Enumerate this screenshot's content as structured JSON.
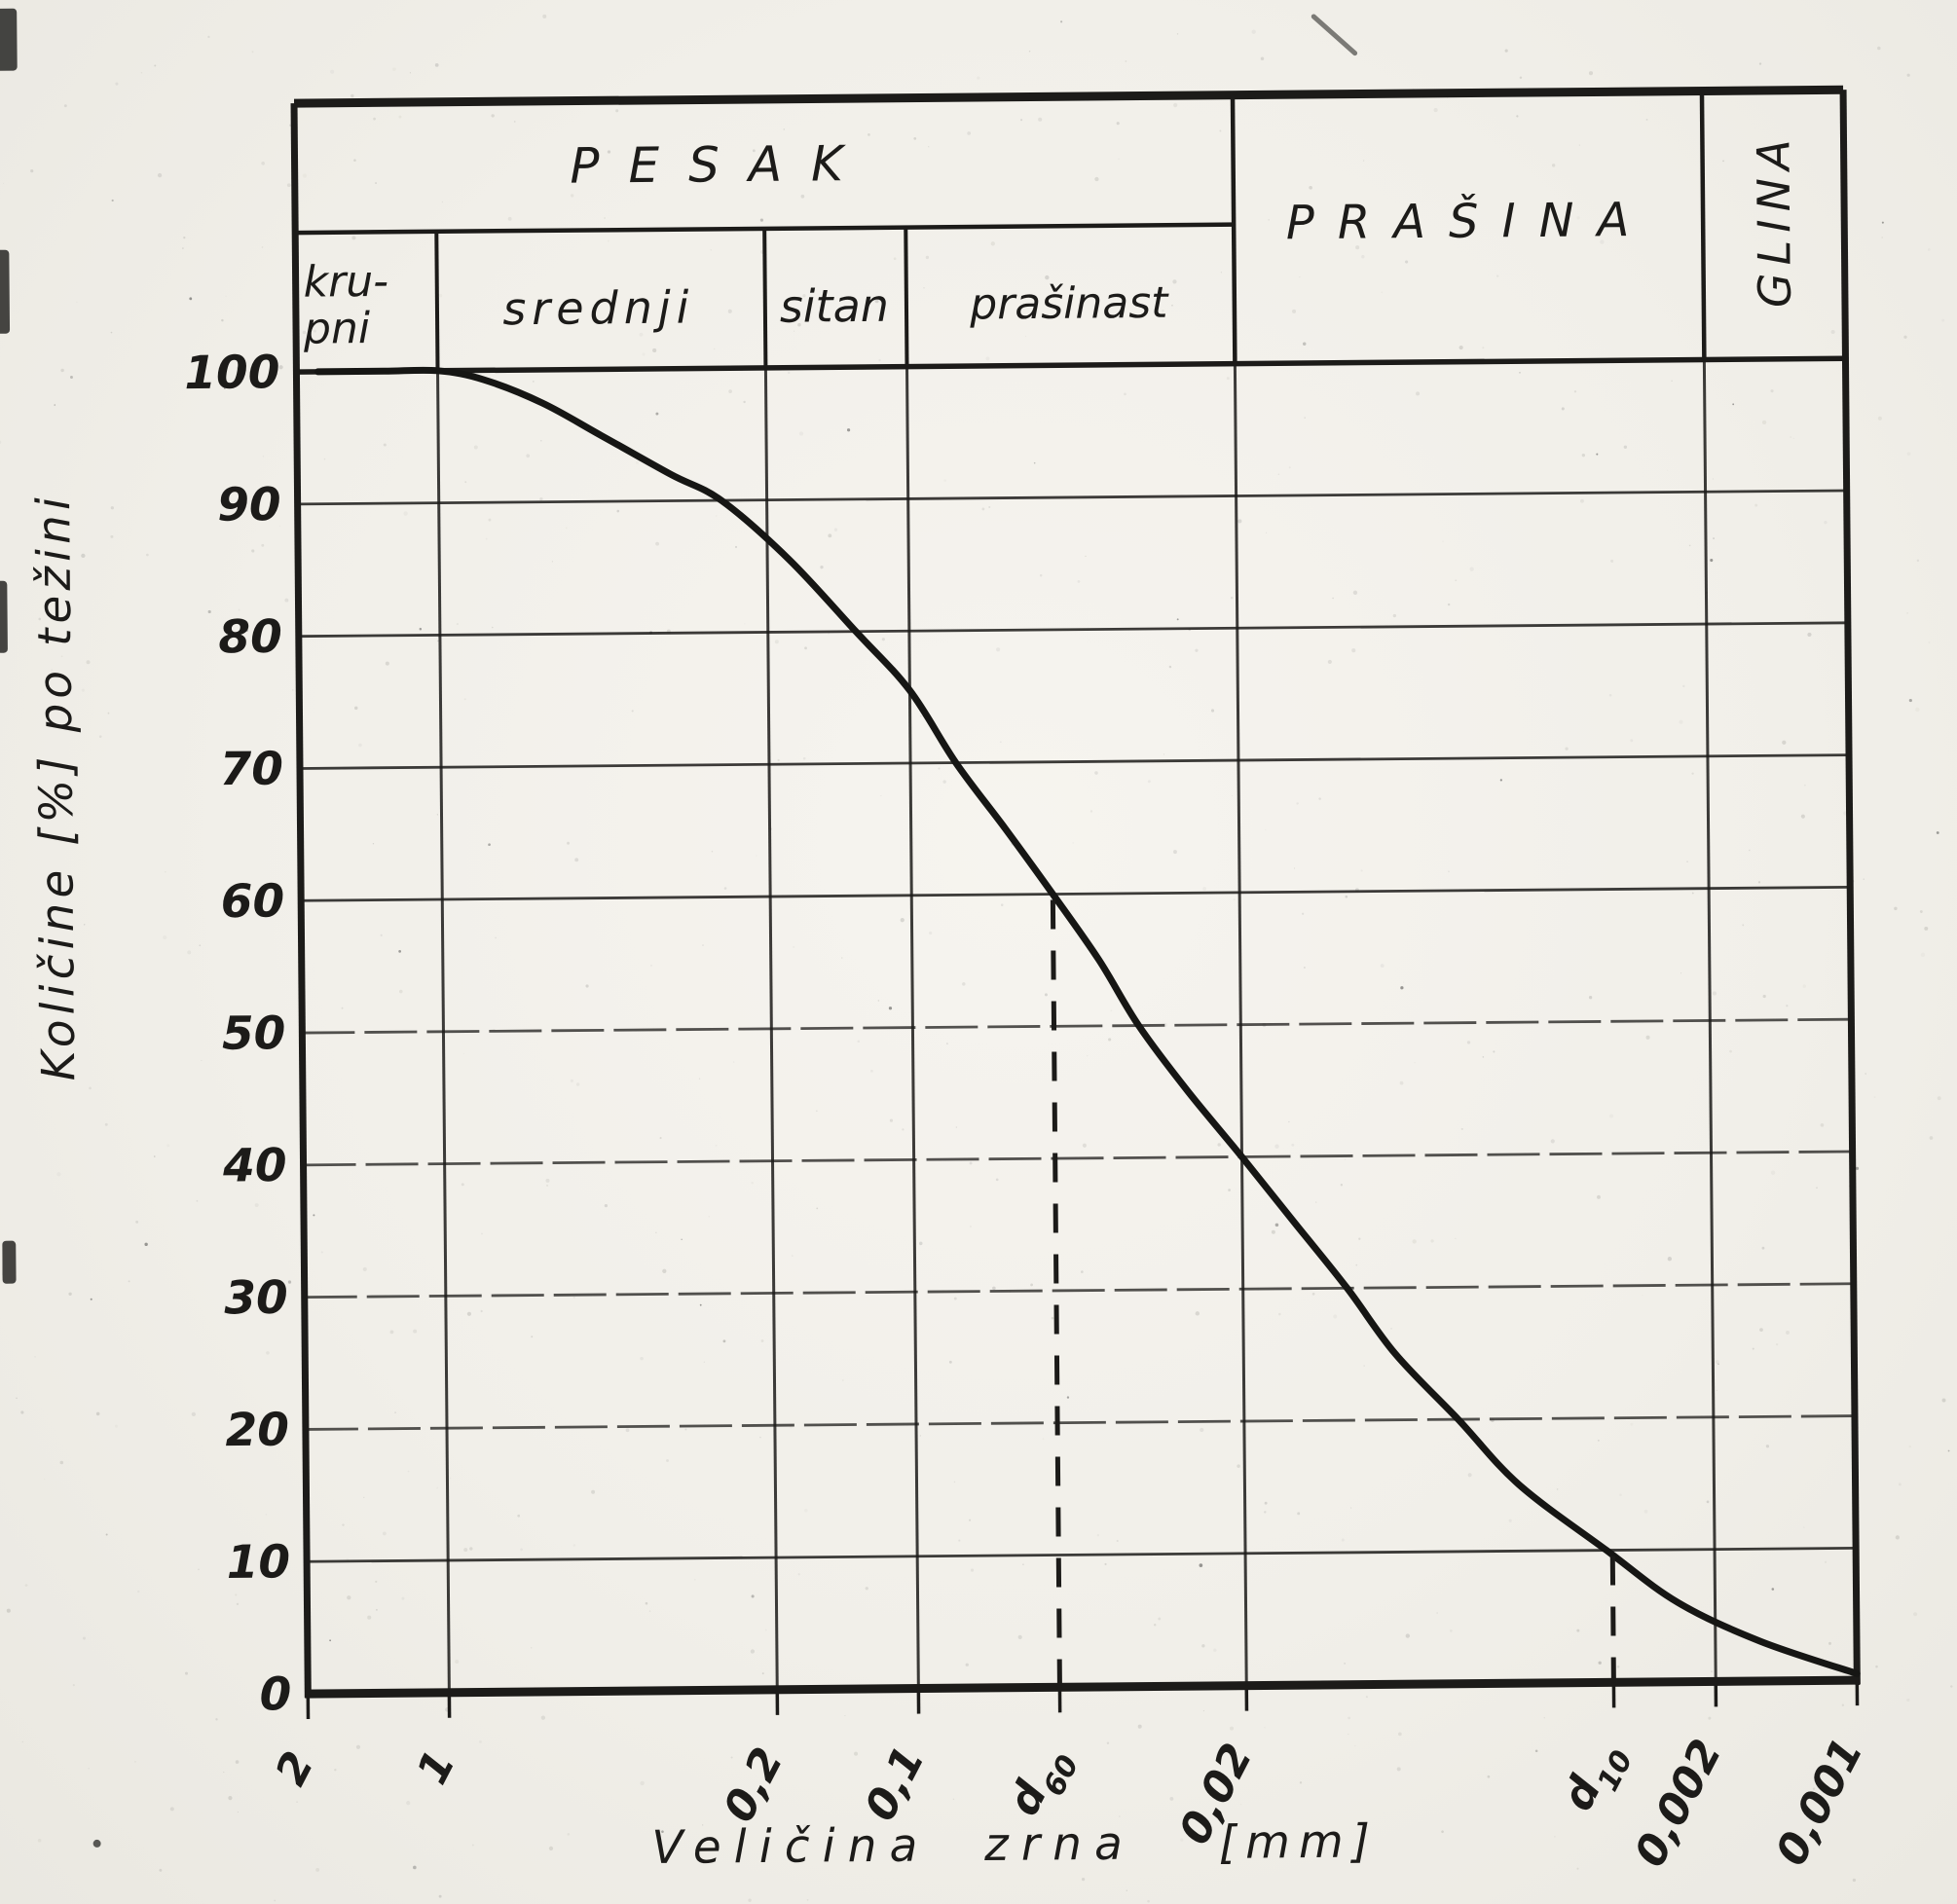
{
  "paper": {
    "bg": "#f3f1ec",
    "ink": "#1c1b19"
  },
  "header": {
    "pesak_label": "PESAK",
    "prasina_label": "PRAŠINA",
    "glina_label": "GLINA",
    "krupni_label": "kru-\npni",
    "srednji_label": "srednji",
    "sitan_label": "sitan",
    "prasinast_label": "prašinast",
    "pesak_range_mm": [
      2,
      0.02
    ],
    "prasina_range_mm": [
      0.02,
      0.002
    ],
    "glina_range_mm": [
      0.002,
      0.001
    ],
    "sand_subtypes": [
      {
        "label": "kru-pni",
        "from_mm": 2,
        "to_mm": 1
      },
      {
        "label": "srednji",
        "from_mm": 1,
        "to_mm": 0.2
      },
      {
        "label": "sitan",
        "from_mm": 0.2,
        "to_mm": 0.1
      },
      {
        "label": "prašinast",
        "from_mm": 0.1,
        "to_mm": 0.02
      }
    ]
  },
  "chart_data": {
    "type": "line",
    "title": "",
    "xlabel": "Veličina zrna",
    "x_unit": "[mm]",
    "ylabel": "Količine [%] po težini",
    "x_scale": "log_descending",
    "x_domain_mm": [
      2,
      0.001
    ],
    "ylim": [
      0,
      100
    ],
    "grid": true,
    "y_ticks": [
      100,
      90,
      80,
      70,
      60,
      50,
      40,
      30,
      20,
      10,
      0
    ],
    "x_gridlines_mm": [
      1,
      0.2,
      0.1,
      0.02,
      0.002
    ],
    "x_tick_labels": [
      {
        "text": "2",
        "mm": 2
      },
      {
        "text": "1",
        "mm": 1
      },
      {
        "text": "0,2",
        "mm": 0.2
      },
      {
        "text": "0,1",
        "mm": 0.1
      },
      {
        "text": "d",
        "sub": "60",
        "mm": 0.05
      },
      {
        "text": "0,02",
        "mm": 0.02
      },
      {
        "text": "d",
        "sub": "10",
        "mm": 0.0033
      },
      {
        "text": "0,002",
        "mm": 0.002
      },
      {
        "text": "0,001",
        "mm": 0.001
      }
    ],
    "series": [
      {
        "name": "curve",
        "points_mm_pct": [
          [
            1.8,
            100
          ],
          [
            1.3,
            100
          ],
          [
            1.0,
            100
          ],
          [
            0.8,
            99.3
          ],
          [
            0.6,
            97.5
          ],
          [
            0.45,
            95
          ],
          [
            0.32,
            92
          ],
          [
            0.25,
            90
          ],
          [
            0.18,
            85.5
          ],
          [
            0.13,
            80
          ],
          [
            0.1,
            75.5
          ],
          [
            0.08,
            70
          ],
          [
            0.063,
            65
          ],
          [
            0.05,
            60
          ],
          [
            0.04,
            55
          ],
          [
            0.033,
            50
          ],
          [
            0.026,
            45
          ],
          [
            0.02,
            40
          ],
          [
            0.0155,
            35
          ],
          [
            0.012,
            30
          ],
          [
            0.0095,
            25
          ],
          [
            0.007,
            20
          ],
          [
            0.0052,
            15
          ],
          [
            0.0034,
            10
          ],
          [
            0.0024,
            6
          ],
          [
            0.0016,
            3
          ],
          [
            0.001,
            0.5
          ]
        ]
      }
    ],
    "markers": [
      {
        "label": "d",
        "sub": "60",
        "mm": 0.05,
        "pct": 60
      },
      {
        "label": "d",
        "sub": "10",
        "mm": 0.0033,
        "pct": 10
      }
    ]
  }
}
